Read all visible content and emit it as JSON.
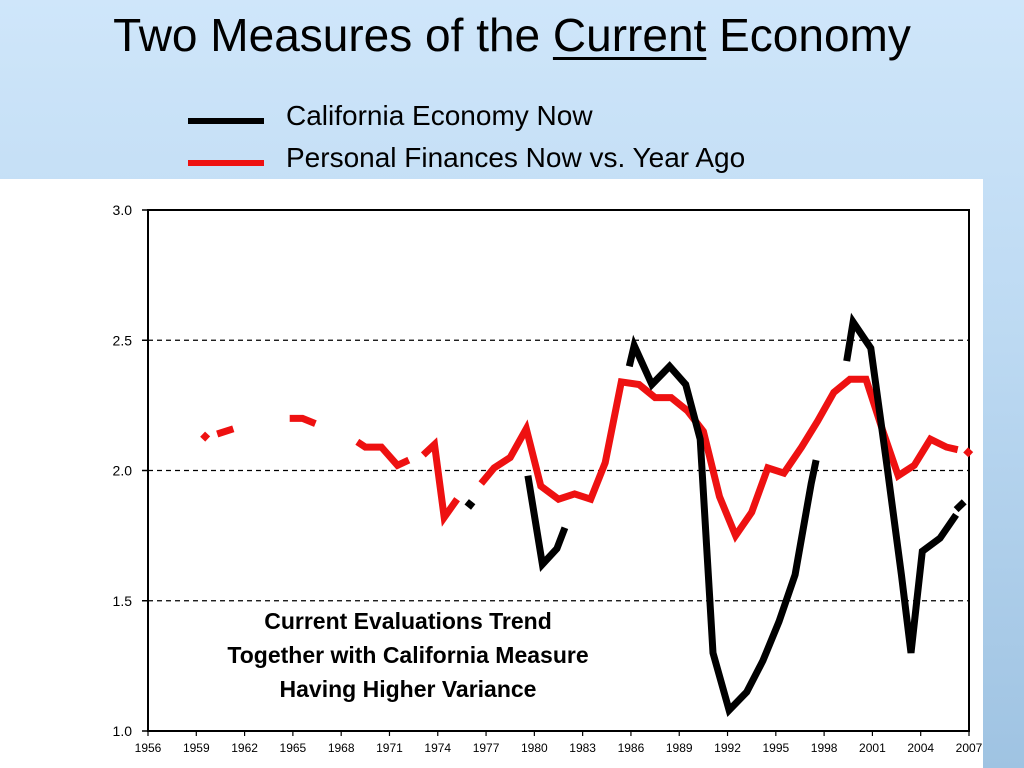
{
  "title": {
    "before": "Two Measures of the ",
    "emphasis": "Current",
    "after": " Economy"
  },
  "colors": {
    "california": "#000000",
    "personal": "#ee1111",
    "background": "#cfe6fa"
  },
  "annotation": {
    "lines": [
      "Current Evaluations Trend",
      "Together with California Measure",
      "Having Higher Variance"
    ]
  },
  "chart_data": {
    "type": "line",
    "title": "Two Measures of the Current Economy",
    "xlabel": "",
    "ylabel": "",
    "xlim": [
      1956,
      2007
    ],
    "ylim": [
      1.0,
      3.0
    ],
    "grid": "horizontal dashed",
    "legend": "top",
    "x_ticks": [
      "1956",
      "1959",
      "1962",
      "1965",
      "1968",
      "1971",
      "1974",
      "1977",
      "1980",
      "1983",
      "1986",
      "1989",
      "1992",
      "1995",
      "1998",
      "2001",
      "2004",
      "2007"
    ],
    "y_ticks": [
      "1.0",
      "1.5",
      "2.0",
      "2.5",
      "3.0"
    ],
    "series": [
      {
        "name": "California Economy Now",
        "color": "#000000",
        "segments": [
          [
            [
              1975.8,
              1.88
            ],
            [
              1976.2,
              1.86
            ]
          ],
          [
            [
              1979.6,
              1.98
            ],
            [
              1980.5,
              1.64
            ],
            [
              1981.4,
              1.7
            ],
            [
              1981.9,
              1.78
            ]
          ],
          [
            [
              1985.9,
              2.4
            ],
            [
              1986.2,
              2.48
            ],
            [
              1987.3,
              2.33
            ],
            [
              1988.4,
              2.4
            ],
            [
              1989.4,
              2.33
            ],
            [
              1990.3,
              2.12
            ],
            [
              1991.1,
              1.3
            ],
            [
              1992.1,
              1.08
            ],
            [
              1993.2,
              1.15
            ],
            [
              1994.2,
              1.27
            ],
            [
              1995.2,
              1.42
            ],
            [
              1996.2,
              1.6
            ],
            [
              1997.2,
              1.95
            ],
            [
              1997.5,
              2.04
            ]
          ],
          [
            [
              1999.4,
              2.42
            ],
            [
              1999.8,
              2.57
            ],
            [
              2000.9,
              2.47
            ],
            [
              2001.9,
              2.02
            ],
            [
              2002.8,
              1.6
            ],
            [
              2003.4,
              1.3
            ],
            [
              2004.1,
              1.69
            ],
            [
              2005.2,
              1.74
            ],
            [
              2006.2,
              1.83
            ]
          ],
          [
            [
              2006.2,
              1.85
            ],
            [
              2006.7,
              1.88
            ]
          ]
        ]
      },
      {
        "name": "Personal Finances Now vs. Year Ago",
        "color": "#ee1111",
        "segments": [
          [
            [
              1959.4,
              2.12
            ],
            [
              1959.7,
              2.14
            ]
          ],
          [
            [
              1960.3,
              2.14
            ],
            [
              1961.3,
              2.16
            ]
          ],
          [
            [
              1964.8,
              2.2
            ],
            [
              1965.6,
              2.2
            ],
            [
              1966.4,
              2.18
            ]
          ],
          [
            [
              1969.0,
              2.11
            ],
            [
              1969.5,
              2.09
            ],
            [
              1970.5,
              2.09
            ],
            [
              1971.5,
              2.02
            ],
            [
              1972.2,
              2.04
            ]
          ],
          [
            [
              1973.1,
              2.06
            ],
            [
              1973.8,
              2.1
            ],
            [
              1974.4,
              1.82
            ],
            [
              1975.2,
              1.89
            ]
          ],
          [
            [
              1976.7,
              1.95
            ],
            [
              1977.5,
              2.01
            ],
            [
              1978.5,
              2.05
            ],
            [
              1979.5,
              2.16
            ],
            [
              1980.4,
              1.94
            ],
            [
              1981.5,
              1.89
            ],
            [
              1982.5,
              1.91
            ],
            [
              1983.5,
              1.89
            ],
            [
              1984.4,
              2.03
            ],
            [
              1985.4,
              2.34
            ],
            [
              1986.5,
              2.33
            ],
            [
              1987.5,
              2.28
            ],
            [
              1988.5,
              2.28
            ],
            [
              1989.5,
              2.23
            ],
            [
              1990.5,
              2.15
            ],
            [
              1991.5,
              1.9
            ],
            [
              1992.5,
              1.75
            ],
            [
              1993.5,
              1.84
            ],
            [
              1994.5,
              2.01
            ],
            [
              1995.5,
              1.99
            ],
            [
              1996.6,
              2.09
            ],
            [
              1997.6,
              2.19
            ],
            [
              1998.6,
              2.3
            ],
            [
              1999.6,
              2.35
            ],
            [
              2000.6,
              2.35
            ],
            [
              2001.6,
              2.16
            ],
            [
              2002.6,
              1.98
            ],
            [
              2003.6,
              2.02
            ],
            [
              2004.6,
              2.12
            ],
            [
              2005.6,
              2.09
            ],
            [
              2006.3,
              2.08
            ]
          ],
          [
            [
              2006.8,
              2.06
            ],
            [
              2007.1,
              2.08
            ]
          ]
        ]
      }
    ]
  }
}
